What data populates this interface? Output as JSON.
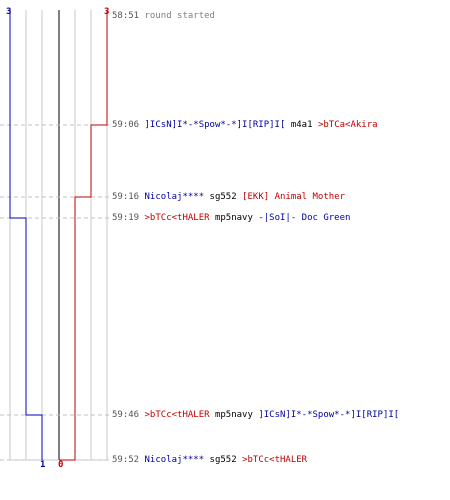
{
  "colors": {
    "blue": "#0000c0",
    "red": "#c00000",
    "grid": "#c8c8c8",
    "center": "#808080",
    "dash": "#c0c0c0"
  },
  "scores": {
    "top_left": "3",
    "top_right": "3",
    "bottom_left": "1",
    "bottom_right": "0"
  },
  "events": [
    {
      "time": "58:51",
      "text": "round started"
    },
    {
      "time": "59:06",
      "killer": "]ICsN]I*-*Spow*-*]I[RIP]I[",
      "killer_team": "blue",
      "weapon": "m4a1",
      "victim": ">bTCa<Akira",
      "victim_team": "red"
    },
    {
      "time": "59:16",
      "killer": "Nicolaj****",
      "killer_team": "blue",
      "weapon": "sg552",
      "victim": "[EKK] Animal Mother",
      "victim_team": "red"
    },
    {
      "time": "59:19",
      "killer": ">bTCc<tHALER",
      "killer_team": "red",
      "weapon": "mp5navy",
      "victim": "-|SoI|- Doc Green",
      "victim_team": "blue"
    },
    {
      "time": "59:46",
      "killer": ">bTCc<tHALER",
      "killer_team": "red",
      "weapon": "mp5navy",
      "victim": "]ICsN]I*-*Spow*-*]I[RIP]I[",
      "victim_team": "blue"
    },
    {
      "time": "59:52",
      "killer": "Nicolaj****",
      "killer_team": "blue",
      "weapon": "sg552",
      "victim": ">bTCc<tHALER",
      "victim_team": "red"
    }
  ]
}
